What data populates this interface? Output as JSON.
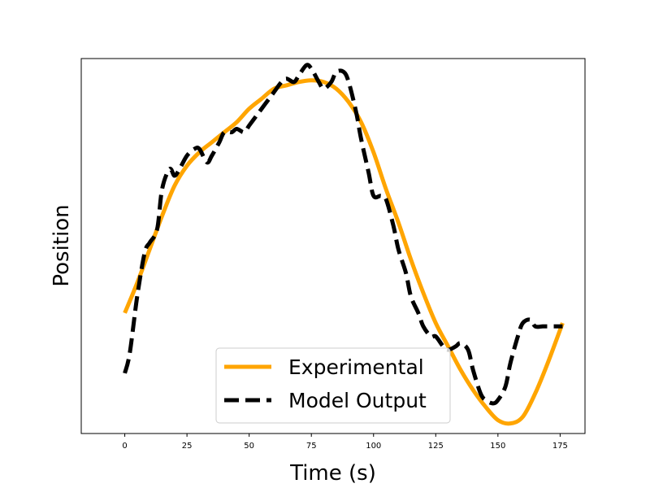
{
  "chart_data": {
    "type": "line",
    "title": "",
    "xlabel": "Time (s)",
    "ylabel": "Position",
    "xlim": [
      -17.5,
      185
    ],
    "ylim": [
      -0.06,
      1.06
    ],
    "x_ticks": [
      0,
      25,
      50,
      75,
      100,
      125,
      150,
      175
    ],
    "y_ticks_shown": false,
    "grid": false,
    "legend": {
      "placement": "lower center"
    },
    "series": [
      {
        "name": "Experimental",
        "color": "#ffa500",
        "style": "solid",
        "x": [
          0,
          5,
          10,
          15,
          20,
          25,
          30,
          35,
          40,
          45,
          50,
          55,
          60,
          65,
          70,
          75,
          80,
          85,
          90,
          95,
          100,
          105,
          110,
          115,
          120,
          125,
          130,
          135,
          140,
          145,
          150,
          155,
          160,
          165,
          170,
          176
        ],
        "y": [
          0.3,
          0.39,
          0.49,
          0.59,
          0.68,
          0.74,
          0.78,
          0.81,
          0.84,
          0.87,
          0.91,
          0.94,
          0.97,
          0.98,
          0.99,
          0.995,
          0.99,
          0.97,
          0.93,
          0.87,
          0.78,
          0.67,
          0.57,
          0.46,
          0.36,
          0.27,
          0.2,
          0.13,
          0.07,
          0.02,
          -0.02,
          -0.03,
          -0.01,
          0.06,
          0.15,
          0.27
        ]
      },
      {
        "name": "Model Output",
        "color": "#000000",
        "style": "dashed",
        "x": [
          0,
          2,
          5,
          8,
          10,
          13,
          15,
          18,
          20,
          22,
          25,
          28,
          30,
          33,
          35,
          38,
          40,
          43,
          45,
          48,
          50,
          53,
          55,
          58,
          60,
          63,
          65,
          68,
          70,
          73,
          75,
          78,
          80,
          83,
          85,
          88,
          90,
          93,
          95,
          98,
          100,
          103,
          105,
          108,
          110,
          113,
          115,
          118,
          120,
          123,
          125,
          128,
          130,
          133,
          135,
          138,
          140,
          143,
          145,
          148,
          150,
          153,
          155,
          158,
          160,
          163,
          165,
          168,
          170,
          173,
          176
        ],
        "y": [
          0.12,
          0.18,
          0.35,
          0.48,
          0.51,
          0.55,
          0.67,
          0.73,
          0.71,
          0.73,
          0.77,
          0.79,
          0.79,
          0.75,
          0.77,
          0.81,
          0.84,
          0.84,
          0.85,
          0.84,
          0.86,
          0.89,
          0.91,
          0.94,
          0.96,
          0.99,
          1.0,
          0.99,
          1.01,
          1.04,
          1.03,
          0.99,
          0.97,
          0.99,
          1.02,
          1.02,
          0.99,
          0.9,
          0.82,
          0.72,
          0.65,
          0.65,
          0.64,
          0.56,
          0.49,
          0.42,
          0.35,
          0.3,
          0.26,
          0.23,
          0.23,
          0.2,
          0.19,
          0.2,
          0.21,
          0.19,
          0.13,
          0.06,
          0.04,
          0.03,
          0.04,
          0.08,
          0.15,
          0.23,
          0.27,
          0.28,
          0.26,
          0.26,
          0.26,
          0.26,
          0.26
        ]
      }
    ]
  }
}
